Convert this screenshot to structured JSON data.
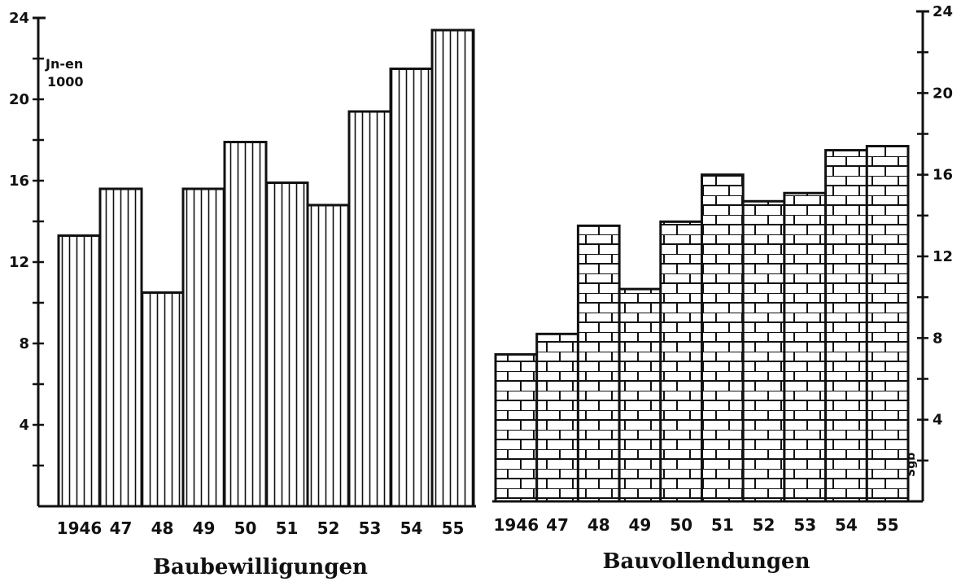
{
  "chart_data": {
    "type": "bar",
    "unit_label_line1": "Jn-en",
    "unit_label_line2": "1000",
    "y_ticks": [
      4,
      8,
      12,
      16,
      20,
      24
    ],
    "ylim": [
      0,
      24
    ],
    "grid": false,
    "corner_mark": "Sgb",
    "panels": [
      {
        "title": "Baubewilligungen",
        "categories": [
          "1946",
          "47",
          "48",
          "49",
          "50",
          "51",
          "52",
          "53",
          "54",
          "55"
        ],
        "values": [
          13.3,
          15.6,
          10.5,
          15.6,
          17.9,
          15.9,
          14.8,
          19.4,
          21.5,
          23.4
        ],
        "pattern": "vertical-lines"
      },
      {
        "title": "Bauvollendungen",
        "categories": [
          "1946",
          "47",
          "48",
          "49",
          "50",
          "51",
          "52",
          "53",
          "54",
          "55"
        ],
        "values": [
          7.2,
          8.2,
          13.5,
          10.4,
          13.7,
          16.0,
          14.7,
          15.1,
          17.2,
          17.4
        ],
        "pattern": "bricks"
      }
    ]
  }
}
